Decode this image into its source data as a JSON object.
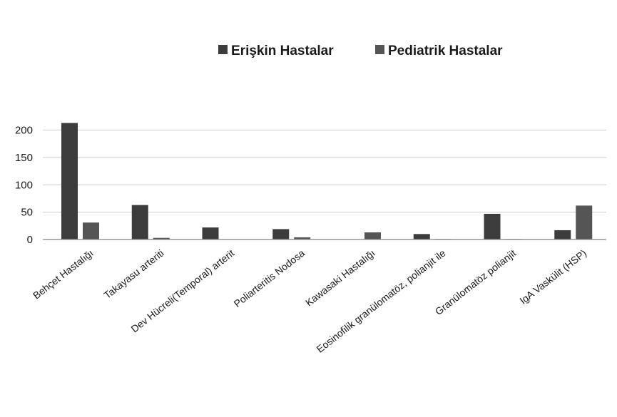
{
  "chart_data": {
    "type": "bar",
    "categories": [
      "Behçet Hastalığı",
      "Takayasu arteriti",
      "Dev Hücreli(Temporal) arterit",
      "Poliarteritis Nodosa",
      "Kawasaki Hastalığı",
      "Eosinofilik granülomatöz, polianjit ile",
      "Granülomatöz polianjit",
      "IgA Vaskülit (HSP)"
    ],
    "series": [
      {
        "name": "Erişkin Hastalar",
        "values": [
          213,
          63,
          22,
          19,
          0,
          10,
          47,
          17
        ],
        "color": "#3c3c3c"
      },
      {
        "name": "Pediatrik Hastalar",
        "values": [
          31,
          3,
          0,
          4,
          13,
          1,
          1,
          62
        ],
        "color": "#555555"
      }
    ],
    "yticks": [
      0,
      50,
      100,
      150,
      200
    ],
    "ylim": [
      0,
      220
    ],
    "grid": true,
    "legend_position": "top-right",
    "title": "",
    "xlabel": "",
    "ylabel": ""
  }
}
